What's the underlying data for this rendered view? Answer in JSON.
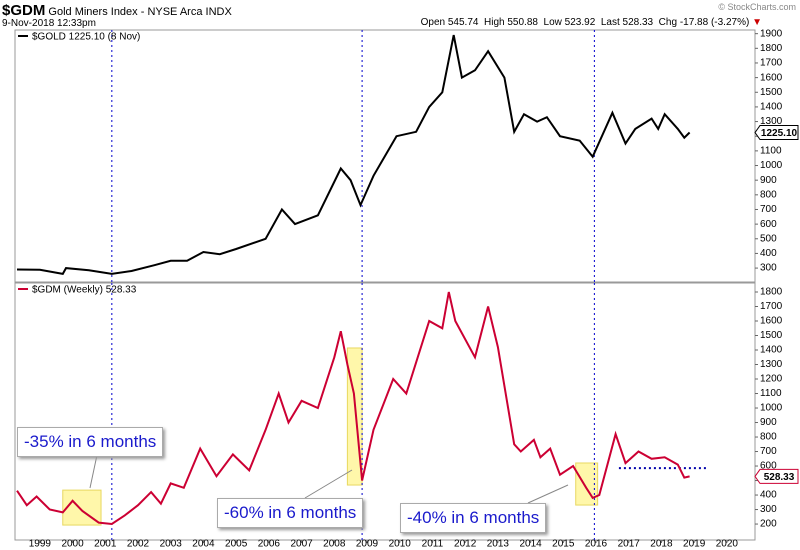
{
  "header": {
    "symbol": "$GDM",
    "name": "Gold Miners Index - NYSE Arca INDX",
    "date": "9-Nov-2018 12:33pm",
    "quote": [
      {
        "label": "Open",
        "value": 545.74
      },
      {
        "label": "High",
        "value": 550.88
      },
      {
        "label": "Low",
        "value": 523.92
      },
      {
        "label": "Last",
        "value": 528.33
      },
      {
        "label": "Chg",
        "value": -17.88
      }
    ],
    "change_pct": "(-3.27%)",
    "credit": "© StockCharts.com"
  },
  "chart_data": [
    {
      "type": "line",
      "xlim": [
        1998.24,
        2020.86
      ],
      "ylim": [
        205,
        1925
      ],
      "yticks": [
        300,
        400,
        500,
        600,
        700,
        800,
        900,
        1000,
        1100,
        1200,
        1300,
        1400,
        1500,
        1600,
        1700,
        1800,
        1900
      ],
      "vlines": [
        2001.2,
        2008.85,
        2015.95
      ],
      "x": [
        1998.3,
        1999.0,
        1999.7,
        1999.8,
        2000.5,
        2001.2,
        2001.8,
        2002.5,
        2003.0,
        2003.5,
        2004.0,
        2004.5,
        2005.0,
        2005.9,
        2006.4,
        2006.8,
        2007.5,
        2008.2,
        2008.5,
        2008.8,
        2009.2,
        2009.9,
        2010.5,
        2010.9,
        2011.3,
        2011.65,
        2011.9,
        2012.3,
        2012.7,
        2013.2,
        2013.5,
        2013.8,
        2014.2,
        2014.5,
        2014.9,
        2015.5,
        2015.9,
        2016.5,
        2016.9,
        2017.2,
        2017.7,
        2017.9,
        2018.1,
        2018.5,
        2018.7,
        2018.86
      ],
      "series": [
        {
          "name": "$GOLD 1225.10 (8 Nov)",
          "color": "#000000",
          "last_label": "1225.10",
          "values": [
            290,
            288,
            260,
            300,
            285,
            260,
            280,
            320,
            350,
            350,
            410,
            395,
            430,
            500,
            700,
            600,
            660,
            980,
            900,
            730,
            930,
            1200,
            1230,
            1400,
            1500,
            1890,
            1600,
            1650,
            1780,
            1600,
            1230,
            1350,
            1300,
            1330,
            1200,
            1170,
            1060,
            1360,
            1150,
            1250,
            1320,
            1250,
            1350,
            1250,
            1190,
            1225.1
          ]
        }
      ]
    },
    {
      "type": "line",
      "xlim": [
        1998.24,
        2020.86
      ],
      "ylim": [
        90,
        1862
      ],
      "yticks": [
        200,
        300,
        400,
        500,
        600,
        700,
        800,
        900,
        1000,
        1100,
        1200,
        1300,
        1400,
        1500,
        1600,
        1700,
        1800
      ],
      "xticks": [
        1999,
        2000,
        2001,
        2002,
        2003,
        2004,
        2005,
        2006,
        2007,
        2008,
        2009,
        2010,
        2011,
        2012,
        2013,
        2014,
        2015,
        2016,
        2017,
        2018,
        2019,
        2020
      ],
      "vlines": [
        2001.2,
        2008.85,
        2015.95
      ],
      "highlights": [
        {
          "x": [
            1999.7,
            2000.87
          ],
          "y": [
            193,
            434
          ]
        },
        {
          "x": [
            2008.4,
            2008.85
          ],
          "y": [
            469,
            1414
          ]
        },
        {
          "x": [
            2015.38,
            2016.05
          ],
          "y": [
            331,
            621
          ]
        }
      ],
      "reference_line": {
        "x": [
          2016.7,
          2019.4
        ],
        "y": 586
      },
      "annotations": [
        "-35% in 6 months",
        "-60% in 6 months",
        "-40% in 6 months"
      ],
      "x": [
        1998.3,
        1998.6,
        1998.9,
        1999.3,
        1999.7,
        2000.0,
        2000.3,
        2000.8,
        2001.2,
        2001.6,
        2002.0,
        2002.4,
        2002.7,
        2003.0,
        2003.4,
        2003.9,
        2004.4,
        2004.9,
        2005.4,
        2005.9,
        2006.3,
        2006.6,
        2007.0,
        2007.5,
        2008.0,
        2008.2,
        2008.4,
        2008.6,
        2008.85,
        2009.2,
        2009.8,
        2010.2,
        2010.9,
        2011.3,
        2011.5,
        2011.7,
        2012.3,
        2012.7,
        2013.0,
        2013.5,
        2013.7,
        2014.1,
        2014.3,
        2014.6,
        2014.9,
        2015.3,
        2015.7,
        2015.9,
        2016.1,
        2016.6,
        2016.9,
        2017.3,
        2017.7,
        2018.1,
        2018.5,
        2018.7,
        2018.86
      ],
      "series": [
        {
          "name": "$GDM (Weekly) 528.33",
          "color": "#cc0033",
          "last_label": "528.33",
          "values": [
            430,
            330,
            390,
            300,
            280,
            360,
            290,
            210,
            200,
            260,
            330,
            420,
            340,
            480,
            450,
            720,
            530,
            680,
            570,
            850,
            1100,
            900,
            1050,
            1000,
            1350,
            1530,
            1300,
            1100,
            500,
            850,
            1200,
            1100,
            1600,
            1550,
            1800,
            1600,
            1350,
            1700,
            1420,
            750,
            700,
            780,
            660,
            720,
            540,
            600,
            450,
            380,
            400,
            820,
            620,
            700,
            650,
            660,
            610,
            520,
            528.33
          ]
        }
      ]
    }
  ]
}
